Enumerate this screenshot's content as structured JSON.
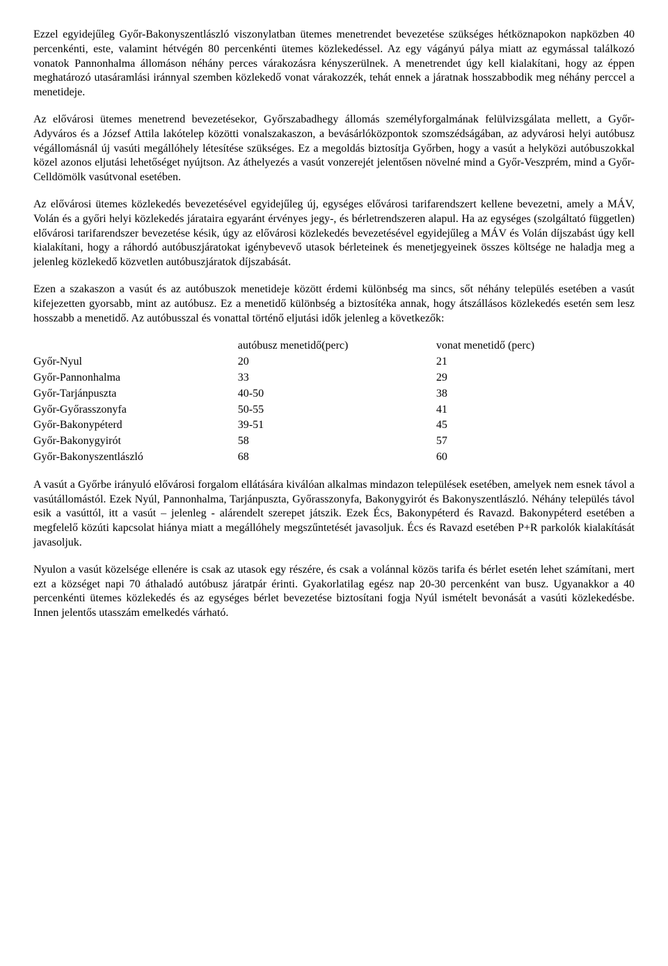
{
  "paragraphs": {
    "p1": "Ezzel egyidejűleg Győr-Bakonyszentlászló viszonylatban ütemes menetrendet bevezetése szükséges hétköznapokon napközben 40 percenkénti, este, valamint hétvégén 80 percenkénti ütemes közlekedéssel. Az egy vágányú pálya miatt az egymással találkozó vonatok Pannonhalma állomáson néhány perces várakozásra kényszerülnek. A menetrendet úgy kell kialakítani, hogy az éppen meghatározó utasáramlási iránnyal szemben közlekedő vonat várakozzék, tehát ennek a járatnak hosszabbodik meg néhány perccel a menetideje.",
    "p2": "Az elővárosi ütemes menetrend bevezetésekor, Győrszabadhegy állomás személyforgalmának felülvizsgálata mellett, a Győr-Adyváros és a József Attila lakótelep közötti vonalszakaszon, a bevásárlóközpontok szomszédságában, az adyvárosi helyi autóbusz végállomásnál új vasúti megállóhely létesítése szükséges. Ez a megoldás biztosítja Győrben, hogy a vasút a helyközi autóbuszokkal közel azonos eljutási lehetőséget nyújtson. Az áthelyezés a vasút vonzerejét jelentősen növelné mind a Győr-Veszprém, mind a Győr-Celldömölk vasútvonal esetében.",
    "p3": "Az elővárosi ütemes közlekedés bevezetésével egyidejűleg új, egységes elővárosi tarifarendszert kellene bevezetni, amely a MÁV, Volán és a győri helyi közlekedés járataira egyaránt érvényes jegy-, és bérletrendszeren alapul. Ha az egységes (szolgáltató független) elővárosi tarifarendszer bevezetése késik, úgy az elővárosi közlekedés bevezetésével egyidejűleg a MÁV és Volán díjszabást úgy kell kialakítani, hogy a ráhordó autóbuszjáratokat igénybevevő utasok bérleteinek és menetjegyeinek összes költsége ne haladja meg a jelenleg közlekedő közvetlen autóbuszjáratok díjszabását.",
    "p4": "Ezen a szakaszon a vasút és az autóbuszok menetideje között érdemi különbség ma sincs, sőt néhány település esetében a vasút kifejezetten gyorsabb, mint az autóbusz. Ez a menetidő különbség a biztosítéka annak, hogy átszállásos közlekedés esetén sem lesz hosszabb a menetidő. Az autóbusszal és vonattal történő eljutási idők jelenleg a következők:",
    "p5": "A vasút a Győrbe irányuló elővárosi forgalom ellátására kiválóan alkalmas mindazon települések esetében, amelyek nem esnek távol a vasútállomástól. Ezek Nyúl, Pannonhalma, Tarjánpuszta, Győrasszonyfa, Bakonygyirót és Bakonyszentlászló. Néhány település távol esik a vasúttól, itt a vasút – jelenleg - alárendelt szerepet játszik. Ezek Écs, Bakonypéterd és Ravazd. Bakonypéterd esetében a megfelelő közúti kapcsolat hiánya miatt a megállóhely megszűntetését javasoljuk. Écs és Ravazd esetében P+R parkolók kialakítását javasoljuk.",
    "p6": "Nyulon a vasút közelsége ellenére is csak az utasok egy részére, és csak a volánnal közös tarifa és bérlet esetén lehet számítani, mert ezt a községet napi 70 áthaladó autóbusz járatpár érinti. Gyakorlatilag egész nap 20-30 percenként van busz. Ugyanakkor a 40 percenkénti ütemes közlekedés és az egységes bérlet bevezetése biztosítani fogja Nyúl ismételt bevonását a vasúti közlekedésbe. Innen jelentős utasszám emelkedés várható."
  },
  "table": {
    "header": {
      "route": "",
      "bus": "autóbusz menetidő(perc)",
      "train": "vonat menetidő (perc)"
    },
    "rows": [
      {
        "route": "Győr-Nyul",
        "bus": "20",
        "train": "21"
      },
      {
        "route": "Győr-Pannonhalma",
        "bus": "33",
        "train": "29"
      },
      {
        "route": "Győr-Tarjánpuszta",
        "bus": "40-50",
        "train": "38"
      },
      {
        "route": "Győr-Győrasszonyfa",
        "bus": "50-55",
        "train": "41"
      },
      {
        "route": "Győr-Bakonypéterd",
        "bus": "39-51",
        "train": "45"
      },
      {
        "route": "Győr-Bakonygyirót",
        "bus": "58",
        "train": "57"
      },
      {
        "route": "Győr-Bakonyszentlászló",
        "bus": "68",
        "train": "60"
      }
    ]
  },
  "style": {
    "text_color": "#000000",
    "background_color": "#ffffff",
    "font_family": "Times New Roman",
    "font_size_pt": 12
  }
}
